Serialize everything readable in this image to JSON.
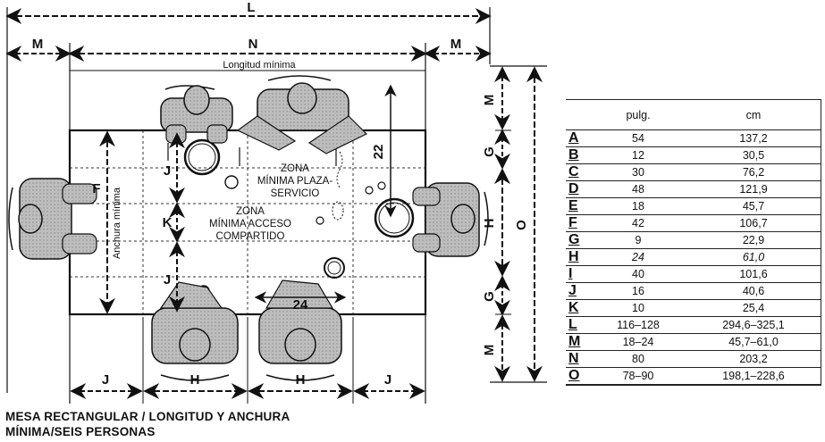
{
  "dimension_letters": {
    "L": "L",
    "M": "M",
    "N": "N",
    "F": "F",
    "G": "G",
    "H": "H",
    "J": "J",
    "K": "K",
    "O": "O",
    "dim22": "22",
    "dim24": "24"
  },
  "labels": {
    "longitud_minima": "Longitud mínima",
    "anchura_minima": "Anchura mínima",
    "zona1_line1": "ZONA",
    "zona1_line2": "MÍNIMA PLAZA-",
    "zona1_line3": "SERVICIO",
    "zona2_line1": "ZONA",
    "zona2_line2": "MÍNIMA ACCESO",
    "zona2_line3": "COMPARTIDO"
  },
  "caption": {
    "line1": "MESA RECTANGULAR / LONGITUD Y ANCHURA",
    "line2": "MÍNIMA/SEIS PERSONAS"
  },
  "table": {
    "header_in": "pulg.",
    "header_cm": "cm",
    "rows": [
      {
        "letter": "A",
        "in": "54",
        "cm": "137,2"
      },
      {
        "letter": "B",
        "in": "12",
        "cm": "30,5"
      },
      {
        "letter": "C",
        "in": "30",
        "cm": "76,2"
      },
      {
        "letter": "D",
        "in": "48",
        "cm": "121,9"
      },
      {
        "letter": "E",
        "in": "18",
        "cm": "45,7"
      },
      {
        "letter": "F",
        "in": "42",
        "cm": "106,7"
      },
      {
        "letter": "G",
        "in": "9",
        "cm": "22,9"
      },
      {
        "letter": "H",
        "in": "24",
        "cm": "61,0"
      },
      {
        "letter": "I",
        "in": "40",
        "cm": "101,6"
      },
      {
        "letter": "J",
        "in": "16",
        "cm": "40,6"
      },
      {
        "letter": "K",
        "in": "10",
        "cm": "25,4"
      },
      {
        "letter": "L",
        "in": "116–128",
        "cm": "294,6–325,1"
      },
      {
        "letter": "M",
        "in": "18–24",
        "cm": "45,7–61,0"
      },
      {
        "letter": "N",
        "in": "80",
        "cm": "203,2"
      },
      {
        "letter": "O",
        "in": "78–90",
        "cm": "198,1–228,6"
      }
    ]
  }
}
